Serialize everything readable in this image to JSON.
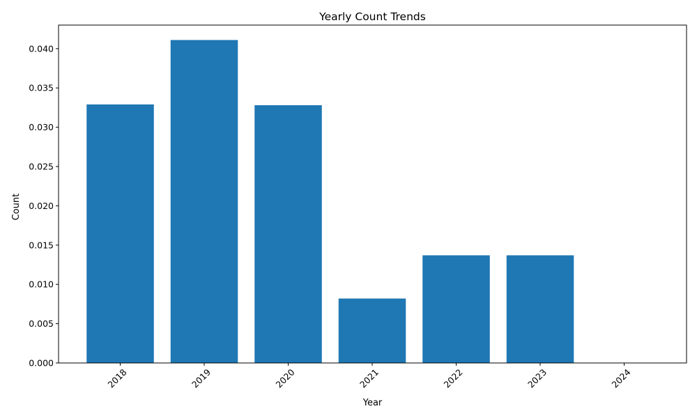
{
  "chart_data": {
    "type": "bar",
    "title": "Yearly Count Trends",
    "xlabel": "Year",
    "ylabel": "Count",
    "categories": [
      "2018",
      "2019",
      "2020",
      "2021",
      "2022",
      "2023",
      "2024"
    ],
    "values": [
      0.0329,
      0.0411,
      0.0328,
      0.0082,
      0.0137,
      0.0137,
      0.0
    ],
    "ylim": [
      0,
      0.043
    ],
    "yticks": [
      "0.000",
      "0.005",
      "0.010",
      "0.015",
      "0.020",
      "0.025",
      "0.030",
      "0.035",
      "0.040"
    ],
    "x_tick_rotation_deg": 45,
    "grid": false,
    "legend": "none",
    "bar_color": "#1f77b4"
  }
}
